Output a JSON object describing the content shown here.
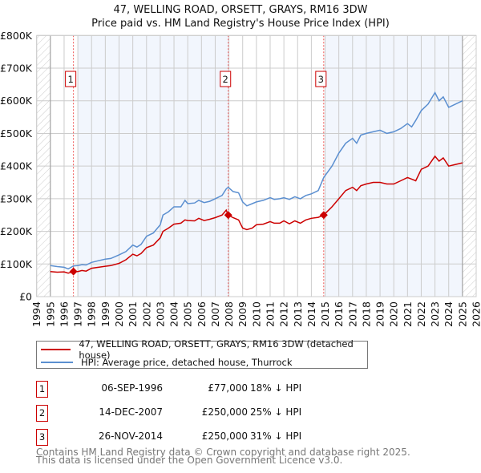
{
  "chart_data": {
    "type": "line",
    "title": "47, WELLING ROAD, ORSETT, GRAYS, RM16 3DW",
    "subtitle": "Price paid vs. HM Land Registry's House Price Index (HPI)",
    "xlim": [
      1994,
      2026
    ],
    "ylim": [
      0,
      800000
    ],
    "x_ticks": [
      "1994",
      "1995",
      "1996",
      "1997",
      "1998",
      "1999",
      "2000",
      "2001",
      "2002",
      "2003",
      "2004",
      "2005",
      "2006",
      "2007",
      "2008",
      "2009",
      "2010",
      "2011",
      "2012",
      "2013",
      "2014",
      "2015",
      "2016",
      "2017",
      "2018",
      "2019",
      "2020",
      "2021",
      "2022",
      "2023",
      "2024",
      "2025",
      "2026"
    ],
    "y_ticks": [
      {
        "v": 0,
        "label": "£0"
      },
      {
        "v": 100000,
        "label": "£100K"
      },
      {
        "v": 200000,
        "label": "£200K"
      },
      {
        "v": 300000,
        "label": "£300K"
      },
      {
        "v": 400000,
        "label": "£400K"
      },
      {
        "v": 500000,
        "label": "£500K"
      },
      {
        "v": 600000,
        "label": "£600K"
      },
      {
        "v": 700000,
        "label": "£700K"
      },
      {
        "v": 800000,
        "label": "£800K"
      }
    ],
    "grid": true,
    "series": [
      {
        "name": "47, WELLING ROAD, ORSETT, GRAYS, RM16 3DW (detached house)",
        "color": "#cc0000",
        "x": [
          1995,
          1995.5,
          1996,
          1996.3,
          1996.68,
          1997,
          1997.3,
          1997.6,
          1998,
          1998.5,
          1999,
          1999.4,
          2000,
          2000.5,
          2001,
          2001.3,
          2001.6,
          2002,
          2002.5,
          2003,
          2003.2,
          2003.6,
          2004,
          2004.5,
          2004.8,
          2005,
          2005.5,
          2005.8,
          2006.2,
          2006.6,
          2007,
          2007.5,
          2007.8,
          2007.95,
          2008.3,
          2008.7,
          2009,
          2009.3,
          2009.7,
          2010,
          2010.5,
          2011,
          2011.3,
          2011.7,
          2012,
          2012.4,
          2012.8,
          2013.2,
          2013.6,
          2014,
          2014.5,
          2014.9,
          2015.5,
          2016,
          2016.5,
          2017,
          2017.3,
          2017.6,
          2018,
          2018.5,
          2019,
          2019.5,
          2020,
          2020.5,
          2021,
          2021.3,
          2021.6,
          2022,
          2022.5,
          2023,
          2023.3,
          2023.6,
          2024,
          2024.5,
          2025
        ],
        "y": [
          77000,
          75000,
          76000,
          72000,
          77000,
          77000,
          80000,
          78000,
          87000,
          90000,
          93000,
          95000,
          102000,
          113000,
          130000,
          125000,
          132000,
          150000,
          158000,
          180000,
          200000,
          210000,
          222000,
          225000,
          235000,
          233000,
          232000,
          240000,
          233000,
          237000,
          242000,
          250000,
          265000,
          250000,
          242000,
          235000,
          210000,
          205000,
          210000,
          220000,
          222000,
          230000,
          225000,
          225000,
          232000,
          223000,
          232000,
          225000,
          235000,
          240000,
          243000,
          250000,
          275000,
          300000,
          325000,
          335000,
          325000,
          340000,
          345000,
          350000,
          350000,
          345000,
          345000,
          355000,
          365000,
          360000,
          355000,
          390000,
          400000,
          430000,
          415000,
          425000,
          400000,
          405000,
          410000
        ]
      },
      {
        "name": "HPI: Average price, detached house, Thurrock",
        "color": "#5b8fd0",
        "x": [
          1995,
          1995.5,
          1996,
          1996.3,
          1996.68,
          1997,
          1997.3,
          1997.6,
          1998,
          1998.5,
          1999,
          1999.4,
          2000,
          2000.5,
          2001,
          2001.3,
          2001.6,
          2002,
          2002.5,
          2003,
          2003.2,
          2003.6,
          2004,
          2004.5,
          2004.8,
          2005,
          2005.5,
          2005.8,
          2006.2,
          2006.6,
          2007,
          2007.5,
          2007.8,
          2007.95,
          2008.3,
          2008.7,
          2009,
          2009.3,
          2009.7,
          2010,
          2010.5,
          2011,
          2011.3,
          2011.7,
          2012,
          2012.4,
          2012.8,
          2013.2,
          2013.6,
          2014,
          2014.5,
          2014.9,
          2015.5,
          2016,
          2016.5,
          2017,
          2017.3,
          2017.6,
          2018,
          2018.5,
          2019,
          2019.5,
          2020,
          2020.5,
          2021,
          2021.3,
          2021.6,
          2022,
          2022.5,
          2023,
          2023.3,
          2023.6,
          2024,
          2024.5,
          2025
        ],
        "y": [
          95000,
          92000,
          90000,
          85000,
          94000,
          95000,
          98000,
          97000,
          105000,
          110000,
          115000,
          117000,
          128000,
          138000,
          158000,
          152000,
          160000,
          185000,
          195000,
          220000,
          250000,
          260000,
          275000,
          275000,
          295000,
          285000,
          287000,
          295000,
          288000,
          292000,
          300000,
          310000,
          330000,
          335000,
          322000,
          318000,
          290000,
          278000,
          285000,
          290000,
          295000,
          303000,
          298000,
          300000,
          303000,
          298000,
          306000,
          300000,
          310000,
          315000,
          325000,
          365000,
          400000,
          440000,
          470000,
          485000,
          470000,
          495000,
          500000,
          505000,
          510000,
          500000,
          505000,
          515000,
          530000,
          520000,
          540000,
          570000,
          590000,
          625000,
          600000,
          612000,
          580000,
          590000,
          600000
        ]
      }
    ],
    "sales": [
      {
        "id": "1",
        "x": 1996.68,
        "y": 77000
      },
      {
        "id": "2",
        "x": 2007.95,
        "y": 250000
      },
      {
        "id": "3",
        "x": 2014.9,
        "y": 250000
      }
    ],
    "shaded_ranges": [
      [
        1997,
        2008
      ],
      [
        2015,
        2025
      ]
    ],
    "data_range": [
      1995,
      2025
    ]
  },
  "legend": [
    {
      "label": "47, WELLING ROAD, ORSETT, GRAYS, RM16 3DW (detached house)",
      "color": "#cc0000"
    },
    {
      "label": "HPI: Average price, detached house, Thurrock",
      "color": "#5b8fd0"
    }
  ],
  "transactions": [
    {
      "num": "1",
      "date": "06-SEP-1996",
      "price": "£77,000",
      "hpi": "18% ↓ HPI"
    },
    {
      "num": "2",
      "date": "14-DEC-2007",
      "price": "£250,000",
      "hpi": "25% ↓ HPI"
    },
    {
      "num": "3",
      "date": "26-NOV-2014",
      "price": "£250,000",
      "hpi": "31% ↓ HPI"
    }
  ],
  "footer": {
    "line1": "Contains HM Land Registry data © Crown copyright and database right 2025.",
    "line2": "This data is licensed under the Open Government Licence v3.0."
  }
}
